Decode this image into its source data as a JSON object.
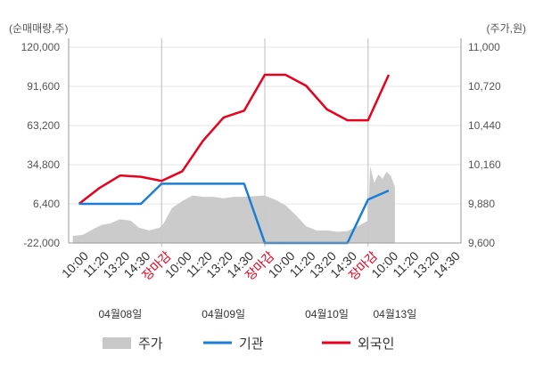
{
  "chart_data": {
    "type": "line",
    "y_left": {
      "unit_label": "(순매매량,주)",
      "range": [
        -22000,
        120000
      ],
      "ticks": [
        {
          "value": 120000,
          "label": "120,000"
        },
        {
          "value": 91600,
          "label": "91,600"
        },
        {
          "value": 63200,
          "label": "63,200"
        },
        {
          "value": 34800,
          "label": "34,800"
        },
        {
          "value": 6400,
          "label": "6,400"
        },
        {
          "value": -22000,
          "label": "-22,000"
        }
      ]
    },
    "y_right": {
      "unit_label": "(주가,원)",
      "range": [
        9600,
        11000
      ],
      "ticks": [
        {
          "value": 11000,
          "label": "11,000"
        },
        {
          "value": 10720,
          "label": "10,720"
        },
        {
          "value": 10440,
          "label": "10,440"
        },
        {
          "value": 10160,
          "label": "10,160"
        },
        {
          "value": 9880,
          "label": "9,880"
        },
        {
          "value": 9600,
          "label": "9,600"
        }
      ]
    },
    "x_labels": [
      {
        "label": "10:00",
        "kind": "time"
      },
      {
        "label": "11:20",
        "kind": "time"
      },
      {
        "label": "13:20",
        "kind": "time"
      },
      {
        "label": "14:30",
        "kind": "time"
      },
      {
        "label": "장마감",
        "kind": "close"
      },
      {
        "label": "10:00",
        "kind": "time"
      },
      {
        "label": "11:20",
        "kind": "time"
      },
      {
        "label": "13:20",
        "kind": "time"
      },
      {
        "label": "14:30",
        "kind": "time"
      },
      {
        "label": "장마감",
        "kind": "close"
      },
      {
        "label": "10:00",
        "kind": "time"
      },
      {
        "label": "11:20",
        "kind": "time"
      },
      {
        "label": "13:20",
        "kind": "time"
      },
      {
        "label": "14:30",
        "kind": "time"
      },
      {
        "label": "장마감",
        "kind": "close"
      },
      {
        "label": "10:00",
        "kind": "time"
      },
      {
        "label": "11:20",
        "kind": "time"
      },
      {
        "label": "13:20",
        "kind": "time"
      },
      {
        "label": "14:30",
        "kind": "time"
      }
    ],
    "dates": [
      {
        "label": "04월08일",
        "index": 2.5
      },
      {
        "label": "04월09일",
        "index": 7.5
      },
      {
        "label": "04월10일",
        "index": 12.5
      },
      {
        "label": "04월13일",
        "index": 15.8
      }
    ],
    "day_boundaries": [
      4.5,
      9.5,
      14.5
    ],
    "series": [
      {
        "name": "외국인",
        "color": "#e8001c",
        "kind": "line",
        "points": [
          {
            "x": 0.5,
            "y": 6400
          },
          {
            "x": 1.5,
            "y": 18000
          },
          {
            "x": 2.5,
            "y": 27000
          },
          {
            "x": 3.5,
            "y": 26000
          },
          {
            "x": 4.5,
            "y": 23000
          },
          {
            "x": 5.5,
            "y": 30000
          },
          {
            "x": 6.5,
            "y": 52000
          },
          {
            "x": 7.5,
            "y": 69000
          },
          {
            "x": 8.5,
            "y": 74000
          },
          {
            "x": 9.5,
            "y": 100000
          },
          {
            "x": 10.5,
            "y": 100000
          },
          {
            "x": 11.5,
            "y": 92000
          },
          {
            "x": 12.5,
            "y": 75000
          },
          {
            "x": 13.5,
            "y": 67000
          },
          {
            "x": 14.5,
            "y": 67000
          },
          {
            "x": 15.5,
            "y": 100000
          }
        ]
      },
      {
        "name": "기관",
        "color": "#1a7fd4",
        "kind": "line",
        "points": [
          {
            "x": 0.5,
            "y": 6400
          },
          {
            "x": 1.5,
            "y": 6400
          },
          {
            "x": 2.5,
            "y": 6400
          },
          {
            "x": 3.5,
            "y": 6400
          },
          {
            "x": 4.5,
            "y": 21000
          },
          {
            "x": 5.5,
            "y": 21000
          },
          {
            "x": 6.5,
            "y": 21000
          },
          {
            "x": 7.5,
            "y": 21000
          },
          {
            "x": 8.5,
            "y": 21000
          },
          {
            "x": 9.5,
            "y": -22000
          },
          {
            "x": 10.5,
            "y": -22000
          },
          {
            "x": 11.5,
            "y": -22000
          },
          {
            "x": 12.5,
            "y": -22000
          },
          {
            "x": 13.5,
            "y": -22000
          },
          {
            "x": 14.5,
            "y": 9500
          },
          {
            "x": 15.5,
            "y": 16000
          }
        ]
      },
      {
        "name": "주가",
        "color": "#c8c8c8",
        "kind": "area",
        "points": [
          {
            "x": 0.2,
            "y": 9650
          },
          {
            "x": 0.7,
            "y": 9660
          },
          {
            "x": 1.2,
            "y": 9700
          },
          {
            "x": 1.6,
            "y": 9730
          },
          {
            "x": 2.0,
            "y": 9740
          },
          {
            "x": 2.5,
            "y": 9770
          },
          {
            "x": 3.0,
            "y": 9760
          },
          {
            "x": 3.4,
            "y": 9710
          },
          {
            "x": 3.9,
            "y": 9690
          },
          {
            "x": 4.4,
            "y": 9710
          },
          {
            "x": 4.6,
            "y": 9740
          },
          {
            "x": 5.0,
            "y": 9850
          },
          {
            "x": 5.5,
            "y": 9900
          },
          {
            "x": 6.0,
            "y": 9940
          },
          {
            "x": 6.5,
            "y": 9930
          },
          {
            "x": 7.0,
            "y": 9930
          },
          {
            "x": 7.5,
            "y": 9920
          },
          {
            "x": 8.0,
            "y": 9930
          },
          {
            "x": 8.5,
            "y": 9930
          },
          {
            "x": 9.0,
            "y": 9935
          },
          {
            "x": 9.5,
            "y": 9940
          },
          {
            "x": 10.0,
            "y": 9910
          },
          {
            "x": 10.5,
            "y": 9870
          },
          {
            "x": 11.0,
            "y": 9800
          },
          {
            "x": 11.5,
            "y": 9720
          },
          {
            "x": 12.0,
            "y": 9690
          },
          {
            "x": 12.5,
            "y": 9690
          },
          {
            "x": 13.0,
            "y": 9680
          },
          {
            "x": 13.5,
            "y": 9685
          },
          {
            "x": 14.0,
            "y": 9720
          },
          {
            "x": 14.5,
            "y": 9760
          },
          {
            "x": 14.6,
            "y": 10150
          },
          {
            "x": 14.8,
            "y": 10030
          },
          {
            "x": 15.0,
            "y": 10090
          },
          {
            "x": 15.2,
            "y": 10060
          },
          {
            "x": 15.4,
            "y": 10110
          },
          {
            "x": 15.6,
            "y": 10080
          },
          {
            "x": 15.8,
            "y": 10000
          }
        ]
      }
    ],
    "grid": true,
    "legend_position": "bottom"
  },
  "legend": [
    {
      "label": "주가",
      "color": "#c8c8c8",
      "shape": "box"
    },
    {
      "label": "기관",
      "color": "#1a7fd4",
      "shape": "line"
    },
    {
      "label": "외국인",
      "color": "#e8001c",
      "shape": "line"
    }
  ]
}
